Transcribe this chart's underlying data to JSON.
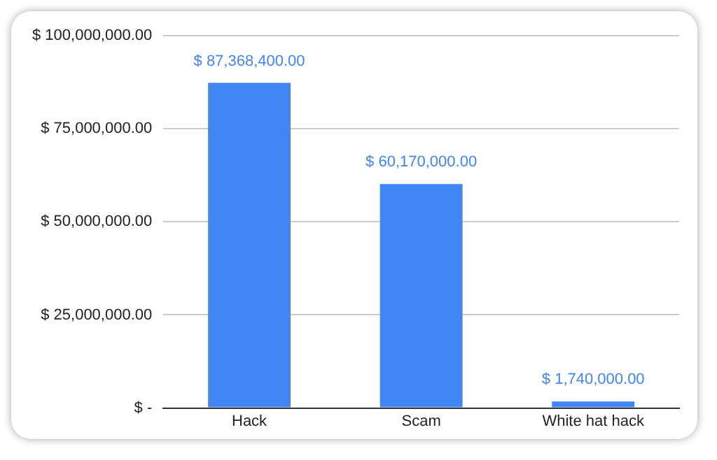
{
  "chart_data": {
    "type": "bar",
    "categories": [
      "Hack",
      "Scam",
      "White hat hack"
    ],
    "values": [
      87368400,
      60170000,
      1740000
    ],
    "color": "#4285f4",
    "value_labels": [
      "$ 87,368,400.00",
      "$ 60,170,000.00",
      "$ 1,740,000.00"
    ],
    "ylim": [
      0,
      100000000
    ],
    "yticks": [
      {
        "value": 0,
        "label": "$ -"
      },
      {
        "value": 25000000,
        "label": "$ 25,000,000.00"
      },
      {
        "value": 50000000,
        "label": "$ 50,000,000.00"
      },
      {
        "value": 75000000,
        "label": "$ 75,000,000.00"
      },
      {
        "value": 100000000,
        "label": "$ 100,000,000.00"
      }
    ],
    "grid": "y"
  }
}
